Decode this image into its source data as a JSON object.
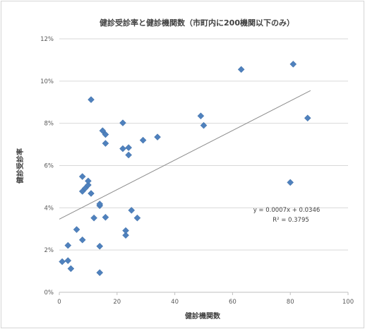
{
  "chart_data": {
    "type": "scatter",
    "title": "健診受診率と健診機関数（市町内に200機関以下のみ）",
    "xlabel": "健診機関数",
    "ylabel": "健診受診率",
    "xlim": [
      0,
      100
    ],
    "ylim": [
      0,
      0.12
    ],
    "x_ticks": [
      0,
      20,
      40,
      60,
      80,
      100
    ],
    "x_tick_labels": [
      "0",
      "20",
      "40",
      "60",
      "80",
      "100"
    ],
    "y_ticks": [
      0,
      0.02,
      0.04,
      0.06,
      0.08,
      0.1,
      0.12
    ],
    "y_tick_labels": [
      "0%",
      "2%",
      "4%",
      "6%",
      "8%",
      "10%",
      "12%"
    ],
    "grid": "horizontal",
    "marker": "diamond",
    "marker_color": "#4f81bd",
    "points": [
      {
        "x": 1,
        "y": 0.0145
      },
      {
        "x": 3,
        "y": 0.015
      },
      {
        "x": 3,
        "y": 0.0222
      },
      {
        "x": 4,
        "y": 0.0112
      },
      {
        "x": 6,
        "y": 0.0297
      },
      {
        "x": 8,
        "y": 0.0248
      },
      {
        "x": 8,
        "y": 0.0478
      },
      {
        "x": 8,
        "y": 0.0548
      },
      {
        "x": 9,
        "y": 0.0493
      },
      {
        "x": 10,
        "y": 0.0508
      },
      {
        "x": 10,
        "y": 0.0527
      },
      {
        "x": 11,
        "y": 0.0468
      },
      {
        "x": 11,
        "y": 0.0912
      },
      {
        "x": 12,
        "y": 0.0352
      },
      {
        "x": 14,
        "y": 0.0093
      },
      {
        "x": 14,
        "y": 0.0218
      },
      {
        "x": 14,
        "y": 0.041
      },
      {
        "x": 14,
        "y": 0.0418
      },
      {
        "x": 15,
        "y": 0.0765
      },
      {
        "x": 16,
        "y": 0.0355
      },
      {
        "x": 16,
        "y": 0.0705
      },
      {
        "x": 16,
        "y": 0.0747
      },
      {
        "x": 22,
        "y": 0.068
      },
      {
        "x": 22,
        "y": 0.0802
      },
      {
        "x": 23,
        "y": 0.027
      },
      {
        "x": 23,
        "y": 0.0292
      },
      {
        "x": 24,
        "y": 0.065
      },
      {
        "x": 24,
        "y": 0.0685
      },
      {
        "x": 25,
        "y": 0.0388
      },
      {
        "x": 27,
        "y": 0.0352
      },
      {
        "x": 29,
        "y": 0.072
      },
      {
        "x": 34,
        "y": 0.0735
      },
      {
        "x": 49,
        "y": 0.0835
      },
      {
        "x": 50,
        "y": 0.079
      },
      {
        "x": 63,
        "y": 0.1055
      },
      {
        "x": 80,
        "y": 0.052
      },
      {
        "x": 81,
        "y": 0.108
      },
      {
        "x": 86,
        "y": 0.0825
      }
    ],
    "trendline": {
      "slope": 0.0007,
      "intercept": 0.0346,
      "x_range": [
        0,
        87
      ]
    },
    "equation_label": "y = 0.0007x + 0.0346",
    "r2_label": "R² = 0.3795"
  }
}
